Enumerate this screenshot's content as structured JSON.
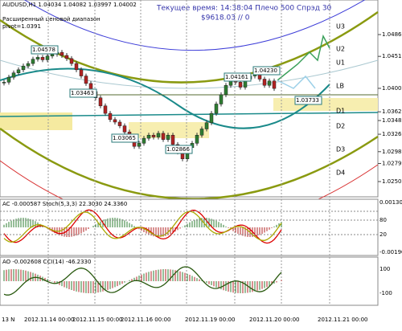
{
  "header": {
    "symbol": "AUDUSD,H1  1.04034 1.04082 1.03997 1.04002",
    "range": "Расширенный ценовой диапазон",
    "pivot": "pivot=1.0391",
    "time": "Текущее время: 14:38:04 Плечо 500 Спрэд 30",
    "balance": "$9618.03   // 0"
  },
  "chart_data": {
    "type": "candlestick",
    "close": [
      1.041,
      1.0418,
      1.0425,
      1.043,
      1.0436,
      1.044,
      1.0447,
      1.045,
      1.0446,
      1.0452,
      1.0455,
      1.0458,
      1.0453,
      1.0448,
      1.044,
      1.043,
      1.042,
      1.0408,
      1.0395,
      1.0385,
      1.0372,
      1.036,
      1.035,
      1.0346,
      1.034,
      1.033,
      1.0318,
      1.0307,
      1.0312,
      1.032,
      1.0325,
      1.0322,
      1.0328,
      1.0318,
      1.0325,
      1.031,
      1.0298,
      1.0287,
      1.0305,
      1.0312,
      1.0325,
      1.0335,
      1.0345,
      1.036,
      1.0375,
      1.039,
      1.0405,
      1.0416,
      1.041,
      1.0402,
      1.0415,
      1.042,
      1.0423,
      1.0415,
      1.0405,
      1.0412,
      1.04
    ],
    "ylim": [
      1.0226,
      1.0542
    ],
    "yticks": [
      1.04865,
      1.04515,
      1.04002,
      1.03625,
      1.03485,
      1.03265,
      1.02985,
      1.02795,
      1.02505
    ],
    "up_color": "#2e7d32",
    "down_color": "#b22222"
  },
  "levels": [
    "U3",
    "U2",
    "U1",
    "LB",
    "D1",
    "D2",
    "D3",
    "D4"
  ],
  "annotations": [
    "1.04578",
    "1.03463",
    "1.03065",
    "1.02866",
    "1.04161",
    "1.04230",
    "1.03733"
  ],
  "panels": {
    "ac": {
      "title": "AC -0.000587  Stoch(5,3,3) 22.3030 24.3360",
      "labels": [
        "0.001305",
        "80",
        "20",
        "-0.00190"
      ]
    },
    "ao": {
      "title": "AO -0.002608  CCI(14) -46.2330",
      "labels": [
        "100",
        "-100"
      ]
    }
  },
  "dates": [
    "13 N",
    "2012.11.14 00:00",
    "2012.11.15 00:00",
    "2012.11.16 00:00",
    "2012.11.19 00:00",
    "2012.11.20 00:00",
    "2012.11.21 00:00"
  ]
}
